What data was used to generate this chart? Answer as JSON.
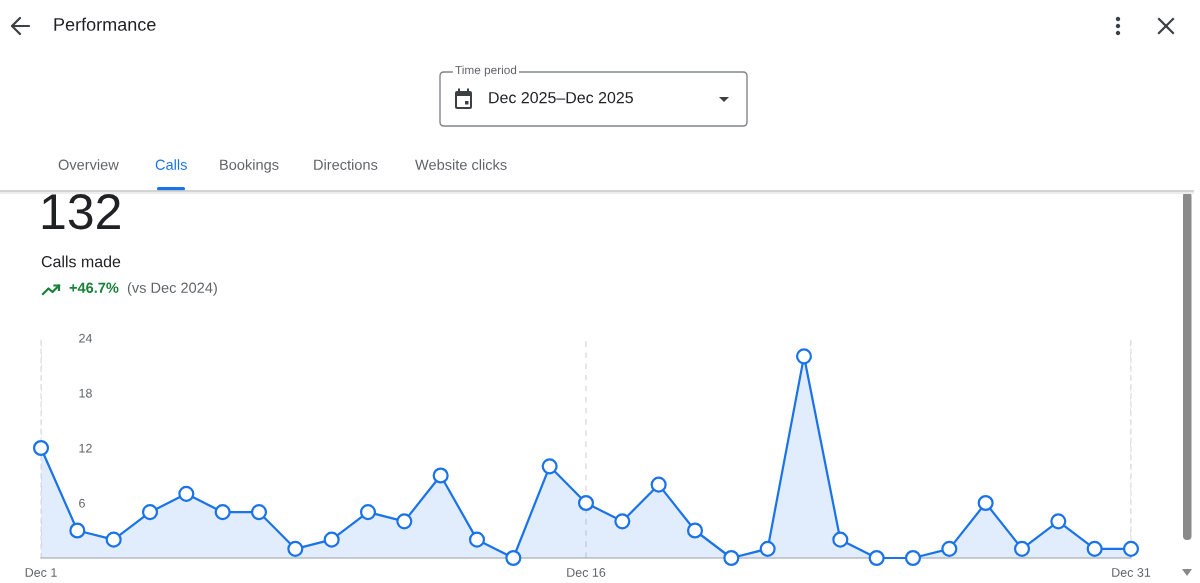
{
  "chart_data": {
    "type": "area",
    "title": "Performance",
    "annotations": [
      "Time period",
      "Dec 2025–Dec 2025",
      "Overview",
      "Calls",
      "Bookings",
      "Directions",
      "Website clicks",
      "132",
      "Calls made",
      "+46.7%",
      "(vs Dec 2024)"
    ],
    "x": [
      "2025-12-01",
      "2025-12-02",
      "2025-12-03",
      "2025-12-04",
      "2025-12-05",
      "2025-12-06",
      "2025-12-07",
      "2025-12-08",
      "2025-12-09",
      "2025-12-10",
      "2025-12-11",
      "2025-12-12",
      "2025-12-13",
      "2025-12-14",
      "2025-12-15",
      "2025-12-16",
      "2025-12-17",
      "2025-12-18",
      "2025-12-19",
      "2025-12-20",
      "2025-12-21",
      "2025-12-22",
      "2025-12-23",
      "2025-12-24",
      "2025-12-25",
      "2025-12-26",
      "2025-12-27",
      "2025-12-28",
      "2025-12-29",
      "2025-12-30",
      "2025-12-31"
    ],
    "series": [
      {
        "color": "#1a73e8",
        "values": [
          12,
          3,
          2,
          5,
          7,
          5,
          5,
          1,
          2,
          5,
          4,
          9,
          2,
          0,
          10,
          6,
          4,
          8,
          3,
          0,
          1,
          22,
          2,
          0,
          0,
          1,
          6,
          1,
          4,
          1,
          1
        ]
      }
    ],
    "xlim": [
      "2025-12-01",
      "2025-12-31"
    ],
    "xticks": [
      {
        "value": "2025-12-01",
        "label": "Dec 1"
      },
      {
        "value": "2025-12-16",
        "label": "Dec 16"
      },
      {
        "value": "2025-12-31",
        "label": "Dec 31"
      }
    ],
    "ylim": [
      0,
      24
    ],
    "yticks": [
      6,
      12,
      18,
      24
    ],
    "grid": "x",
    "marker": "circle",
    "line_style": "solid"
  }
}
